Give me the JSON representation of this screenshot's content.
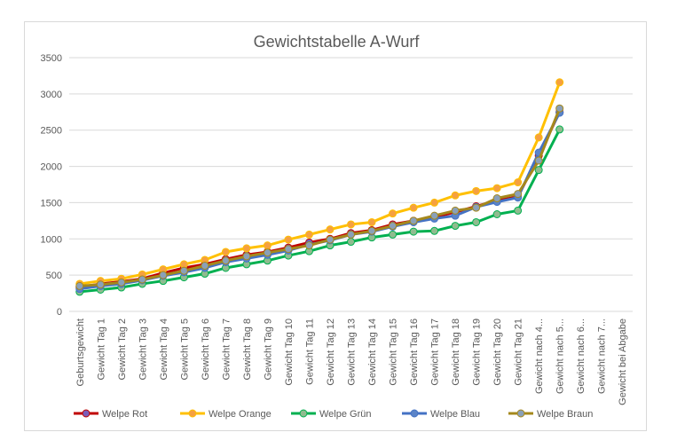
{
  "chart_data": {
    "type": "line",
    "title": "Gewichtstabelle A-Wurf",
    "xlabel": "",
    "ylabel": "",
    "ylim": [
      0,
      3500
    ],
    "yticks": [
      0,
      500,
      1000,
      1500,
      2000,
      2500,
      3000,
      3500
    ],
    "grid": true,
    "legend_position": "bottom",
    "categories": [
      "Geburtsgewicht",
      "Gewicht Tag 1",
      "Gewicht Tag 2",
      "Gewicht Tag 3",
      "Gewicht Tag 4",
      "Gewicht Tag 5",
      "Gewicht Tag 6",
      "Gewicht Tag 7",
      "Gewicht Tag 8",
      "Gewicht Tag 9",
      "Gewicht Tag 10",
      "Gewicht Tag 11",
      "Gewicht Tag 12",
      "Gewicht Tag 13",
      "Gewicht Tag 14",
      "Gewicht Tag 15",
      "Gewicht Tag 16",
      "Gewicht Tag 17",
      "Gewicht Tag 18",
      "Gewicht Tag 19",
      "Gewicht Tag 20",
      "Gewicht Tag 21",
      "Gewicht nach 4...",
      "Gewicht nach 5...",
      "Gewicht nach 6...",
      "Gewicht nach 7...",
      "Gewicht bei Abgabe"
    ],
    "series": [
      {
        "name": "Welpe Rot",
        "color": "#c00000",
        "marker": "#7a5cb8",
        "values": [
          330,
          380,
          410,
          450,
          530,
          600,
          650,
          720,
          780,
          820,
          880,
          950,
          1000,
          1080,
          1120,
          1200,
          1250,
          1300,
          1370,
          1450,
          1530,
          1580,
          2150,
          2750,
          null,
          null,
          null
        ]
      },
      {
        "name": "Welpe Orange",
        "color": "#ffc000",
        "marker": "#f5a040",
        "values": [
          380,
          420,
          450,
          510,
          580,
          650,
          710,
          820,
          870,
          910,
          990,
          1060,
          1130,
          1200,
          1230,
          1350,
          1430,
          1500,
          1600,
          1660,
          1700,
          1780,
          2400,
          3160,
          null,
          null,
          null
        ]
      },
      {
        "name": "Welpe Grün",
        "color": "#00b050",
        "marker": "#8fbc8f",
        "values": [
          270,
          300,
          330,
          380,
          420,
          470,
          520,
          600,
          650,
          700,
          770,
          830,
          910,
          960,
          1020,
          1060,
          1100,
          1110,
          1180,
          1230,
          1340,
          1390,
          1950,
          2510,
          null,
          null,
          null
        ]
      },
      {
        "name": "Welpe Blau",
        "color": "#4472c4",
        "marker": "#5b84c8",
        "values": [
          310,
          350,
          380,
          430,
          490,
          540,
          600,
          680,
          730,
          780,
          840,
          920,
          980,
          1060,
          1100,
          1170,
          1230,
          1280,
          1320,
          1440,
          1510,
          1570,
          2190,
          2740,
          null,
          null,
          null
        ]
      },
      {
        "name": "Welpe Braun",
        "color": "#a5881c",
        "marker": "#8aa0b8",
        "values": [
          350,
          370,
          400,
          440,
          500,
          560,
          630,
          700,
          760,
          810,
          860,
          910,
          990,
          1060,
          1110,
          1180,
          1250,
          1320,
          1390,
          1430,
          1560,
          1620,
          2080,
          2800,
          null,
          null,
          null
        ]
      }
    ]
  }
}
